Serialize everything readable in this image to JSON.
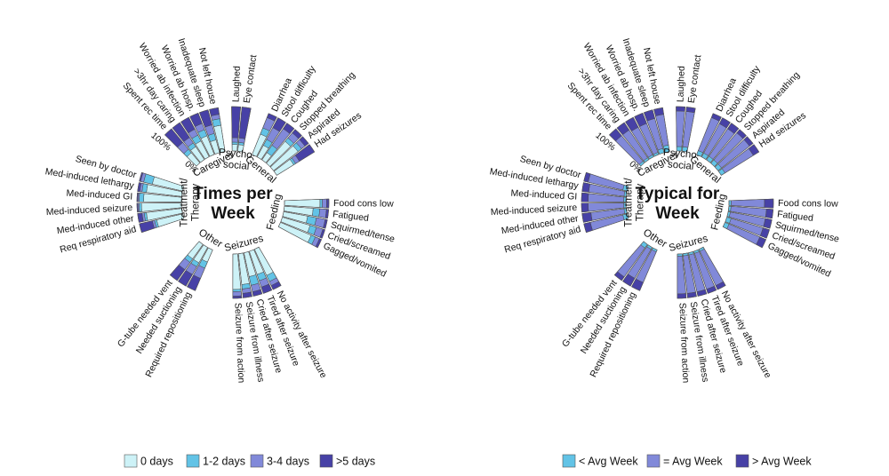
{
  "chart_data": [
    {
      "type": "radial-stacked-bar",
      "title_lines": [
        "Times per",
        "Week"
      ],
      "colors": [
        "#cdf2f7",
        "#62c3e6",
        "#8189d9",
        "#4741a6"
      ],
      "legend": [
        "0 days",
        "1-2 days",
        "3-4 days",
        ">5 days"
      ],
      "scale_labels": {
        "zero": "0%",
        "full": "100%"
      },
      "groups": [
        {
          "name": [
            "Caregiver"
          ],
          "items": [
            {
              "label": "Spent rec time",
              "values": [
                0.3,
                0.1,
                0.2,
                0.4
              ]
            },
            {
              "label": ">3hr day caring",
              "values": [
                0.35,
                0.1,
                0.15,
                0.4
              ]
            },
            {
              "label": "Worried ab infection",
              "values": [
                0.4,
                0.15,
                0.15,
                0.3
              ]
            },
            {
              "label": "Worried ab hosp.",
              "values": [
                0.45,
                0.15,
                0.15,
                0.25
              ]
            },
            {
              "label": "Inadequate sleep",
              "values": [
                0.3,
                0.15,
                0.2,
                0.35
              ]
            },
            {
              "label": "Not left house",
              "values": [
                0.6,
                0.15,
                0.1,
                0.15
              ]
            }
          ]
        },
        {
          "name": [
            "Psycho-",
            "social"
          ],
          "items": [
            {
              "label": "Laughed",
              "values": [
                0.15,
                0.05,
                0.1,
                0.7
              ]
            },
            {
              "label": "Eye contact",
              "values": [
                0.15,
                0.05,
                0.1,
                0.7
              ]
            }
          ]
        },
        {
          "name": [
            "General"
          ],
          "items": [
            {
              "label": "Diarrhea",
              "values": [
                0.5,
                0.15,
                0.25,
                0.1
              ]
            },
            {
              "label": "Stool difficulty",
              "values": [
                0.3,
                0.15,
                0.3,
                0.25
              ]
            },
            {
              "label": "Coughed",
              "values": [
                0.2,
                0.2,
                0.45,
                0.15
              ]
            },
            {
              "label": "Stopped breathing",
              "values": [
                0.65,
                0.1,
                0.15,
                0.1
              ]
            },
            {
              "label": "Aspirated",
              "values": [
                0.7,
                0.1,
                0.1,
                0.1
              ]
            },
            {
              "label": "Had seizures",
              "values": [
                0.45,
                0.05,
                0.1,
                0.4
              ]
            }
          ]
        },
        {
          "name": [
            "Feeding"
          ],
          "items": [
            {
              "label": "Food cons low",
              "values": [
                0.8,
                0.05,
                0.1,
                0.05
              ]
            },
            {
              "label": "Fatigued",
              "values": [
                0.65,
                0.15,
                0.15,
                0.05
              ]
            },
            {
              "label": "Squirmed/tense",
              "values": [
                0.55,
                0.2,
                0.2,
                0.05
              ]
            },
            {
              "label": "Cried/screamed",
              "values": [
                0.65,
                0.15,
                0.15,
                0.05
              ]
            },
            {
              "label": "Gagged/vomited",
              "values": [
                0.75,
                0.1,
                0.1,
                0.05
              ]
            }
          ]
        },
        {
          "name": [
            "Seizures"
          ],
          "items": [
            {
              "label": "No activity after seizure",
              "values": [
                0.65,
                0.15,
                0.1,
                0.1
              ]
            },
            {
              "label": "Tired after seizure",
              "values": [
                0.55,
                0.15,
                0.15,
                0.15
              ]
            },
            {
              "label": "Cried after seizure",
              "values": [
                0.55,
                0.2,
                0.15,
                0.1
              ]
            },
            {
              "label": "Seizure from illness",
              "values": [
                0.7,
                0.1,
                0.1,
                0.1
              ]
            },
            {
              "label": "Seizure from action",
              "values": [
                0.8,
                0.05,
                0.1,
                0.05
              ]
            }
          ]
        },
        {
          "name": [
            "Other"
          ],
          "items": [
            {
              "label": "Required repositioning",
              "values": [
                0.3,
                0.15,
                0.25,
                0.3
              ]
            },
            {
              "label": "Needed suctioning",
              "values": [
                0.4,
                0.1,
                0.2,
                0.3
              ]
            },
            {
              "label": "G-tube needed vent",
              "values": [
                0.4,
                0.1,
                0.2,
                0.3
              ]
            }
          ]
        },
        {
          "name": [
            "Treatment/",
            "Therapy"
          ],
          "items": [
            {
              "label": "Req respiratory aid",
              "values": [
                0.6,
                0.05,
                0.05,
                0.3
              ]
            },
            {
              "label": "Med-induced other",
              "values": [
                0.8,
                0.05,
                0.05,
                0.1
              ]
            },
            {
              "label": "Med-induced seizure",
              "values": [
                0.9,
                0.05,
                0.03,
                0.02
              ]
            },
            {
              "label": "Med-induced GI",
              "values": [
                0.85,
                0.1,
                0.03,
                0.02
              ]
            },
            {
              "label": "Med-induced lethargy",
              "values": [
                0.8,
                0.1,
                0.05,
                0.05
              ]
            },
            {
              "label": "Seen by doctor",
              "values": [
                0.7,
                0.2,
                0.07,
                0.03
              ]
            }
          ]
        }
      ]
    },
    {
      "type": "radial-stacked-bar",
      "title_lines": [
        "Typical for",
        "Week"
      ],
      "colors": [
        "#62c3e6",
        "#8189d9",
        "#4741a6"
      ],
      "legend": [
        "< Avg Week",
        "= Avg Week",
        "> Avg Week"
      ],
      "scale_labels": {
        "zero": "0%",
        "full": "100%"
      },
      "groups": [
        {
          "name": [
            "Caregiver"
          ],
          "items": [
            {
              "label": "Spent rec time",
              "values": [
                0.05,
                0.75,
                0.2
              ]
            },
            {
              "label": ">3hr day caring",
              "values": [
                0.05,
                0.75,
                0.2
              ]
            },
            {
              "label": "Worried ab infection",
              "values": [
                0.05,
                0.7,
                0.25
              ]
            },
            {
              "label": "Worried ab hosp.",
              "values": [
                0.05,
                0.7,
                0.25
              ]
            },
            {
              "label": "Inadequate sleep",
              "values": [
                0.1,
                0.7,
                0.2
              ]
            },
            {
              "label": "Not left house",
              "values": [
                0.15,
                0.7,
                0.15
              ]
            }
          ]
        },
        {
          "name": [
            "Psycho-",
            "social"
          ],
          "items": [
            {
              "label": "Laughed",
              "values": [
                0.1,
                0.8,
                0.1
              ]
            },
            {
              "label": "Eye contact",
              "values": [
                0.1,
                0.8,
                0.1
              ]
            }
          ]
        },
        {
          "name": [
            "General"
          ],
          "items": [
            {
              "label": "Diarrhea",
              "values": [
                0.1,
                0.8,
                0.1
              ]
            },
            {
              "label": "Stool difficulty",
              "values": [
                0.1,
                0.75,
                0.15
              ]
            },
            {
              "label": "Coughed",
              "values": [
                0.1,
                0.75,
                0.15
              ]
            },
            {
              "label": "Stopped breathing",
              "values": [
                0.1,
                0.8,
                0.1
              ]
            },
            {
              "label": "Aspirated",
              "values": [
                0.1,
                0.8,
                0.1
              ]
            },
            {
              "label": "Had seizures",
              "values": [
                0.1,
                0.75,
                0.15
              ]
            }
          ]
        },
        {
          "name": [
            "Feeding"
          ],
          "items": [
            {
              "label": "Food cons low",
              "values": [
                0.05,
                0.75,
                0.2
              ]
            },
            {
              "label": "Fatigued",
              "values": [
                0.05,
                0.8,
                0.15
              ]
            },
            {
              "label": "Squirmed/tense",
              "values": [
                0.05,
                0.8,
                0.15
              ]
            },
            {
              "label": "Cried/screamed",
              "values": [
                0.1,
                0.75,
                0.15
              ]
            },
            {
              "label": "Gagged/vomited",
              "values": [
                0.1,
                0.75,
                0.15
              ]
            }
          ]
        },
        {
          "name": [
            "Seizures"
          ],
          "items": [
            {
              "label": "No activity after seizure",
              "values": [
                0.05,
                0.85,
                0.1
              ]
            },
            {
              "label": "Tired after seizure",
              "values": [
                0.05,
                0.85,
                0.1
              ]
            },
            {
              "label": "Cried after seizure",
              "values": [
                0.05,
                0.85,
                0.1
              ]
            },
            {
              "label": "Seizure from illness",
              "values": [
                0.05,
                0.85,
                0.1
              ]
            },
            {
              "label": "Seizure from action",
              "values": [
                0.05,
                0.85,
                0.1
              ]
            }
          ]
        },
        {
          "name": [
            "Other"
          ],
          "items": [
            {
              "label": "Required repositioning",
              "values": [
                0.05,
                0.75,
                0.2
              ]
            },
            {
              "label": "Needed suctioning",
              "values": [
                0.05,
                0.75,
                0.2
              ]
            },
            {
              "label": "G-tube needed vent",
              "values": [
                0.1,
                0.8,
                0.1
              ]
            }
          ]
        },
        {
          "name": [
            "Treatment/",
            "Therapy"
          ],
          "items": [
            {
              "label": "Req respiratory aid",
              "values": [
                0.1,
                0.75,
                0.15
              ]
            },
            {
              "label": "Med-induced other",
              "values": [
                0.05,
                0.75,
                0.2
              ]
            },
            {
              "label": "Med-induced seizure",
              "values": [
                0.05,
                0.8,
                0.15
              ]
            },
            {
              "label": "Med-induced GI",
              "values": [
                0.05,
                0.8,
                0.15
              ]
            },
            {
              "label": "Med-induced lethargy",
              "values": [
                0.05,
                0.8,
                0.15
              ]
            },
            {
              "label": "Seen by doctor",
              "values": [
                0.1,
                0.8,
                0.1
              ]
            }
          ]
        }
      ]
    }
  ]
}
